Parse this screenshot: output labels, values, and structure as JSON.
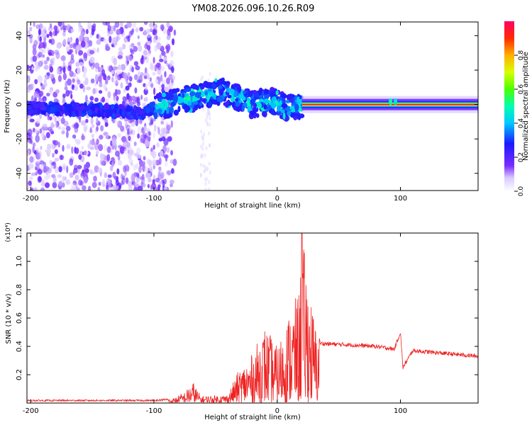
{
  "title": "YM08.2026.096.10.26.R09",
  "chart_data": [
    {
      "type": "heatmap",
      "xlabel": "Height of straight line (km)",
      "ylabel": "Frequency (Hz)",
      "xlim": [
        -203,
        163
      ],
      "ylim": [
        -50,
        48
      ],
      "xticks": [
        "-200",
        "-100",
        "0",
        "100"
      ],
      "xtick_values": [
        -200,
        -100,
        0,
        100
      ],
      "yticks": [
        "-40",
        "-20",
        "0",
        "20",
        "40"
      ],
      "ytick_values": [
        -40,
        -20,
        0,
        20,
        40
      ],
      "colorbar": {
        "label": "Normalized spectral amplitude",
        "range": [
          0,
          1
        ],
        "ticks": [
          "0.0",
          "0.2",
          "0.4",
          "0.6",
          "0.8"
        ],
        "tick_values": [
          0,
          0.2,
          0.4,
          0.6,
          0.8
        ]
      },
      "ridge": {
        "description_points_km_hz": [
          [
            -200,
            -2
          ],
          [
            -150,
            -3
          ],
          [
            -110,
            -5
          ],
          [
            -90,
            0
          ],
          [
            -70,
            4
          ],
          [
            -55,
            6
          ],
          [
            -45,
            8
          ],
          [
            -35,
            5
          ],
          [
            -20,
            0
          ],
          [
            -5,
            2
          ],
          [
            10,
            -2
          ],
          [
            20,
            0
          ],
          [
            163,
            0
          ]
        ],
        "noise_region_km": [
          -203,
          -88
        ],
        "coherent_line_km": [
          20,
          163
        ],
        "coherent_line_frequency_hz": 0,
        "coherent_line_amplitude": 0.95
      }
    },
    {
      "type": "line",
      "xlabel": "Height of straight line (km)",
      "ylabel": "SNR (10 * v/v)",
      "scale_label": "(x10⁴)",
      "xlim": [
        -203,
        163
      ],
      "ylim": [
        0,
        1.2
      ],
      "xticks": [
        "-200",
        "-100",
        "0",
        "100"
      ],
      "xtick_values": [
        -200,
        -100,
        0,
        100
      ],
      "yticks": [
        "0.2",
        "0.4",
        "0.6",
        "0.8",
        "1.0",
        "1.2"
      ],
      "ytick_values": [
        0.2,
        0.4,
        0.6,
        0.8,
        1.0,
        1.2
      ],
      "series": [
        {
          "name": "SNR",
          "color": "#ee2222",
          "envelope_points": [
            [
              -203,
              0.02
            ],
            [
              -100,
              0.02
            ],
            [
              -85,
              0.03
            ],
            [
              -75,
              0.08
            ],
            [
              -68,
              0.15
            ],
            [
              -62,
              0.05
            ],
            [
              -40,
              0.06
            ],
            [
              -32,
              0.22
            ],
            [
              -20,
              0.35
            ],
            [
              -10,
              0.55
            ],
            [
              0,
              0.4
            ],
            [
              10,
              0.65
            ],
            [
              18,
              0.8
            ],
            [
              20,
              1.2
            ],
            [
              25,
              0.9
            ],
            [
              30,
              0.6
            ],
            [
              35,
              0.42
            ],
            [
              60,
              0.41
            ],
            [
              80,
              0.4
            ],
            [
              95,
              0.38
            ],
            [
              100,
              0.5
            ],
            [
              102,
              0.25
            ],
            [
              110,
              0.37
            ],
            [
              163,
              0.33
            ]
          ]
        }
      ]
    }
  ]
}
